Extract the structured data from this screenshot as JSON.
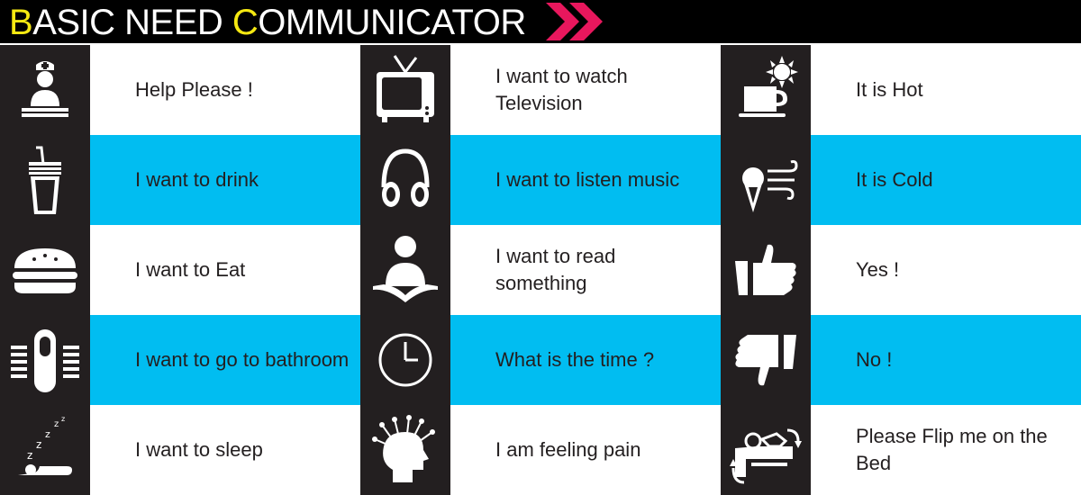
{
  "header": {
    "title_first_letter": "B",
    "title_part1": "ASIC NEED ",
    "title_second_letter": "C",
    "title_part2": "OMMUNICATOR"
  },
  "colors": {
    "header_bg": "#000000",
    "accent_yellow": "#f5e812",
    "chevron_pink": "#e8175d",
    "row_blue": "#01bdf1",
    "icon_bg": "#231f20",
    "text": "#231f20"
  },
  "cards": {
    "help": {
      "label": "Help Please !",
      "icon": "nurse-icon"
    },
    "tv": {
      "label": "I want to watch Television",
      "icon": "television-icon"
    },
    "hot": {
      "label": "It is Hot",
      "icon": "hot-drink-sun-icon"
    },
    "drink": {
      "label": "I want to drink",
      "icon": "drink-cup-icon"
    },
    "music": {
      "label": "I want to listen music",
      "icon": "headphones-icon"
    },
    "cold": {
      "label": "It is Cold",
      "icon": "ice-cream-wind-icon"
    },
    "eat": {
      "label": "I want to Eat",
      "icon": "burger-icon"
    },
    "read": {
      "label": "I want to read something",
      "icon": "reading-person-icon"
    },
    "yes": {
      "label": "Yes !",
      "icon": "thumbs-up-icon"
    },
    "bathroom": {
      "label": "I want to go to bathroom",
      "icon": "toilet-icon"
    },
    "time": {
      "label": "What is the time ?",
      "icon": "clock-icon"
    },
    "no": {
      "label": "No !",
      "icon": "thumbs-down-icon"
    },
    "sleep": {
      "label": "I want to sleep",
      "icon": "sleeping-icon"
    },
    "pain": {
      "label": "I am feeling pain",
      "icon": "head-pain-icon"
    },
    "flip": {
      "label": "Please Flip me on the Bed",
      "icon": "flip-in-bed-icon"
    }
  }
}
